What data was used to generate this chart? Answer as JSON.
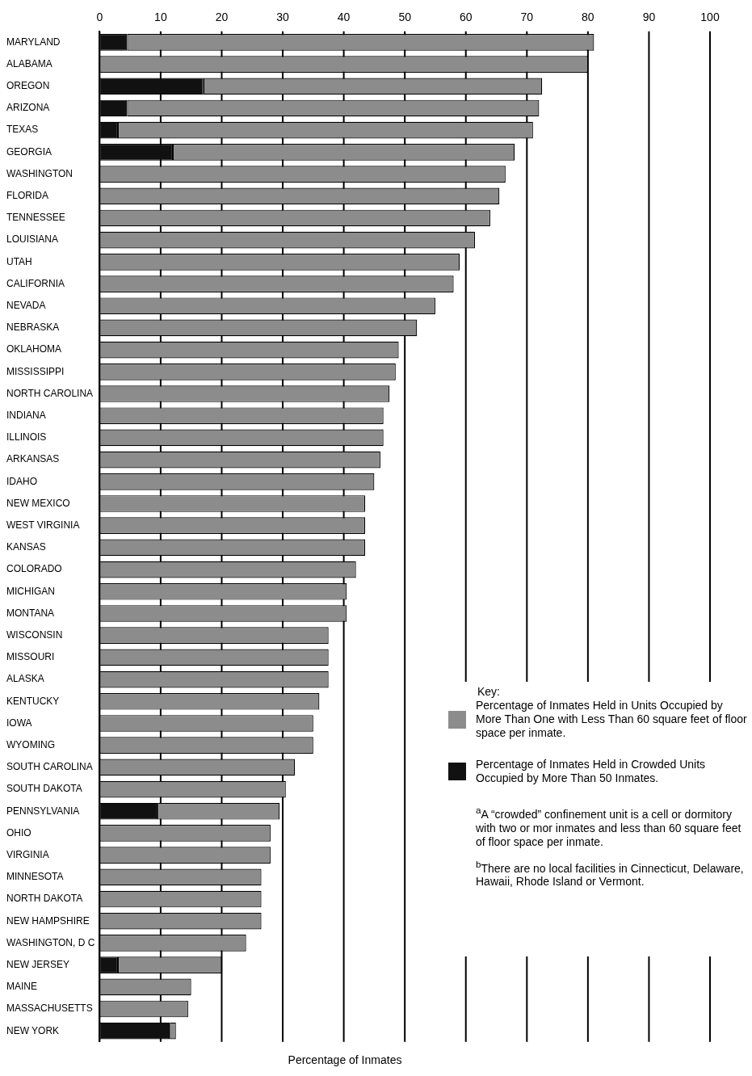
{
  "chart_data": {
    "type": "bar",
    "orientation": "horizontal",
    "stacked": true,
    "grid": "x",
    "legend": "bottom right",
    "legend_title": "Key:",
    "xlabel": "Percentage of Inmates",
    "categories": [
      "MARYLAND",
      "ALABAMA",
      "OREGON",
      "ARIZONA",
      "TEXAS",
      "GEORGIA",
      "WASHINGTON",
      "FLORIDA",
      "TENNESSEE",
      "LOUISIANA",
      "UTAH",
      "CALIFORNIA",
      "NEVADA",
      "NEBRASKA",
      "OKLAHOMA",
      "MISSISSIPPI",
      "NORTH CAROLINA",
      "INDIANA",
      "ILLINOIS",
      "ARKANSAS",
      "IDAHO",
      "NEW MEXICO",
      "WEST VIRGINIA",
      "KANSAS",
      "COLORADO",
      "MICHIGAN",
      "MONTANA",
      "WISCONSIN",
      "MISSOURI",
      "ALASKA",
      "KENTUCKY",
      "IOWA",
      "WYOMING",
      "SOUTH CAROLINA",
      "SOUTH DAKOTA",
      "PENNSYLVANIA",
      "OHIO",
      "VIRGINIA",
      "MINNESOTA",
      "NORTH DAKOTA",
      "NEW HAMPSHIRE",
      "WASHINGTON, D C",
      "NEW JERSEY",
      "MAINE",
      "MASSACHUSETTS",
      "NEW YORK"
    ],
    "series": [
      {
        "name": "Percentage of Inmates Held in Crowded Units Occupied by More Than 50 Inmates.",
        "color": "#111111",
        "values": [
          4.5,
          0,
          17,
          4.5,
          3,
          12,
          0,
          0,
          0,
          0,
          0,
          0,
          0,
          0,
          0,
          0,
          0,
          0,
          0,
          0,
          0,
          0,
          0,
          0,
          0,
          0,
          0,
          0,
          0,
          0,
          0,
          0,
          0,
          0,
          0,
          9.5,
          0,
          0,
          0,
          0,
          0,
          0,
          3,
          0,
          0,
          11.5
        ]
      },
      {
        "name": "Percentage of Inmates Held in Units Occupied by More Than One with Less Than 60 square feet of floor space per inmate.",
        "color": "#8c8c8c",
        "values": [
          76.5,
          80,
          55.5,
          67.5,
          68,
          56,
          66.5,
          65.5,
          64,
          61.5,
          59,
          58,
          55,
          52,
          49,
          48.5,
          47.5,
          46.5,
          46.5,
          46,
          45,
          43.5,
          43.5,
          43.5,
          42,
          40.5,
          40.5,
          37.5,
          37.5,
          37.5,
          36,
          35,
          35,
          32,
          30.5,
          20,
          28,
          28,
          26.5,
          26.5,
          26.5,
          24,
          17,
          15,
          14.5,
          1
        ]
      }
    ],
    "xlim": [
      0,
      100
    ],
    "xticks": [
      0,
      10,
      20,
      30,
      40,
      50,
      60,
      70,
      80,
      90,
      100
    ],
    "annotations": [
      "$^{a}$A “crowded” confinement unit is a cell or dormitory with two or mor inmates and less than 60 square feet of floor space per inmate.",
      "$^{b}$There are no local facilities in Cinnecticut, Delaware, Hawaii, Rhode Island or Vermont."
    ]
  }
}
